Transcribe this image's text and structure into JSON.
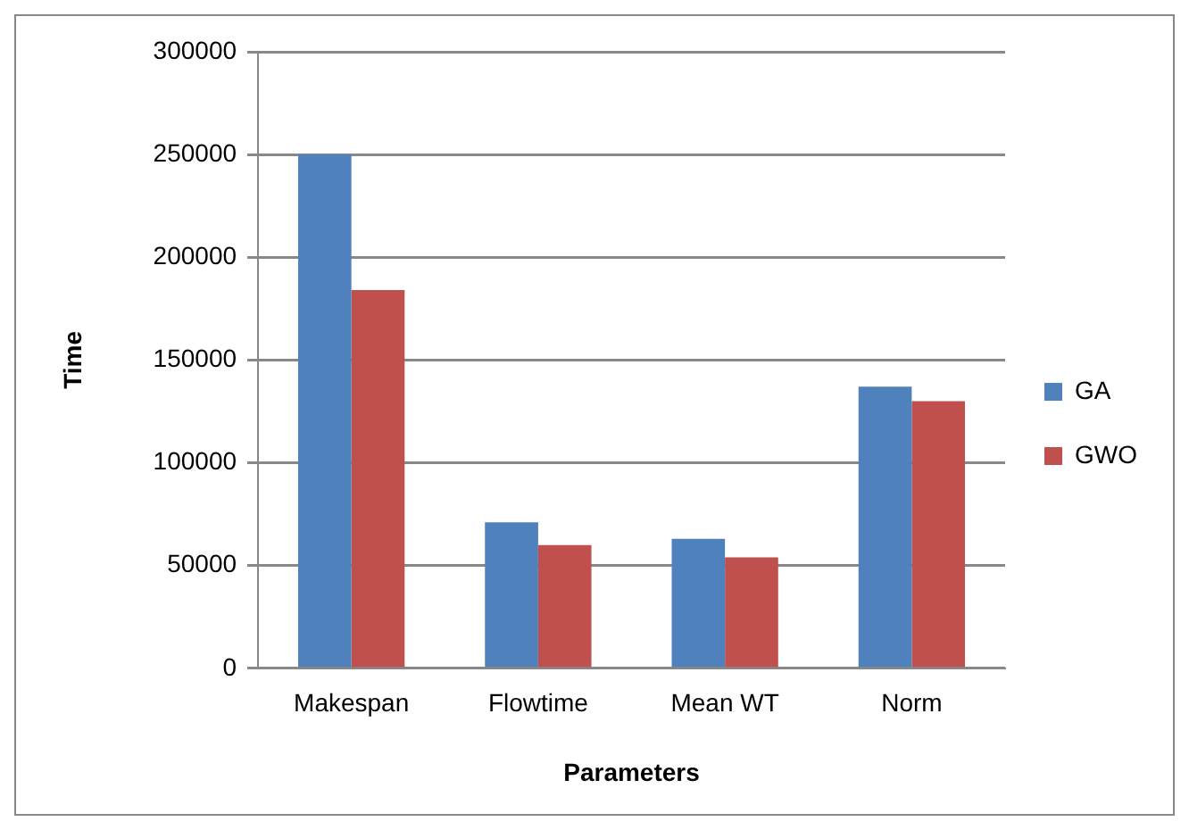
{
  "chart_data": {
    "type": "bar",
    "xlabel": "Parameters",
    "ylabel": "Time",
    "categories": [
      "Makespan",
      "Flowtime",
      "Mean WT",
      "Norm"
    ],
    "series": [
      {
        "name": "GA",
        "color": "#4f81bd",
        "values": [
          250000,
          71000,
          63000,
          137000
        ]
      },
      {
        "name": "GWO",
        "color": "#c0504d",
        "values": [
          184000,
          60000,
          54000,
          130000
        ]
      }
    ],
    "ylim": [
      0,
      300000
    ],
    "yticks": [
      0,
      50000,
      100000,
      150000,
      200000,
      250000,
      300000
    ],
    "grid": "y",
    "legend": "right"
  }
}
